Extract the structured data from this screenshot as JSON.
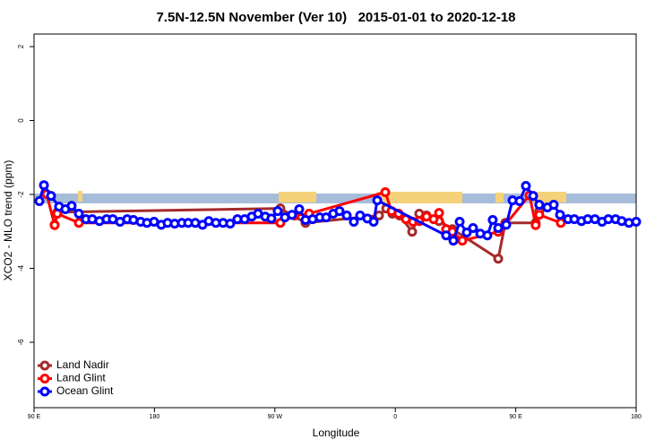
{
  "chart_data": {
    "type": "line",
    "title": "7.5N-12.5N November (Ver 10)   2015-01-01 to 2020-12-18",
    "xlabel": "Longitude",
    "ylabel": "XCO2 - MLO trend (ppm)",
    "xlim": [
      90,
      540
    ],
    "ylim": [
      -7.77,
      2.34
    ],
    "xticks": [
      {
        "value": 90,
        "label": "90 E"
      },
      180,
      {
        "value": 270,
        "label": "90 W"
      },
      {
        "value": 360,
        "label": "0"
      },
      {
        "value": 450,
        "label": "90 E"
      },
      {
        "value": 540,
        "label": "180"
      }
    ],
    "yticks": [
      2,
      0,
      -2,
      -4,
      -6
    ],
    "legend": "bottom-left",
    "series": [
      {
        "name": "Land Nadir",
        "color": "#a52a2a",
        "x": [
          105.4,
          107.4,
          274.1,
          292.9,
          347.8,
          353.2,
          357.8,
          363.2,
          372.6,
          377.9,
          383.3,
          392.7,
          402.7,
          436.9,
          442.2,
          464.9,
          467.6
        ],
        "values": [
          -2.82,
          -2.48,
          -2.38,
          -2.77,
          -2.57,
          -2.38,
          -2.52,
          -2.57,
          -3.01,
          -2.52,
          -2.57,
          -2.72,
          -2.94,
          -3.74,
          -2.77,
          -2.77,
          -2.45
        ]
      },
      {
        "name": "Land Glint",
        "color": "#ff0000",
        "x": [
          99.4,
          105.4,
          107.4,
          123.5,
          274.1,
          284.8,
          295.6,
          352.5,
          357.2,
          362.5,
          367.9,
          373.2,
          377.9,
          383.3,
          388.6,
          392.7,
          398.0,
          402.7,
          410.1,
          436.9,
          442.2,
          460.3,
          464.9,
          467.6,
          483.7
        ],
        "values": [
          -1.99,
          -2.83,
          -2.52,
          -2.77,
          -2.77,
          -2.57,
          -2.52,
          -1.94,
          -2.45,
          -2.52,
          -2.67,
          -2.74,
          -2.72,
          -2.6,
          -2.67,
          -2.5,
          -2.94,
          -3.01,
          -3.25,
          -3.01,
          -2.82,
          -2.02,
          -2.83,
          -2.55,
          -2.77
        ]
      },
      {
        "name": "Ocean Glint",
        "color": "#0000ff",
        "x": [
          94.0,
          97.4,
          102.7,
          108.7,
          113.4,
          118.1,
          123.5,
          128.8,
          133.5,
          138.9,
          144.2,
          148.9,
          154.3,
          159.6,
          164.3,
          169.7,
          174.4,
          179.7,
          185.1,
          189.8,
          195.1,
          200.5,
          205.2,
          210.5,
          215.9,
          220.6,
          225.9,
          231.3,
          236.6,
          242.0,
          247.4,
          252.7,
          257.4,
          262.8,
          267.4,
          272.1,
          277.5,
          282.8,
          288.2,
          292.9,
          298.2,
          303.6,
          308.3,
          313.6,
          318.3,
          323.7,
          329.0,
          333.7,
          339.1,
          343.8,
          346.5,
          398.0,
          403.4,
          408.1,
          413.4,
          418.1,
          423.5,
          428.8,
          432.8,
          436.9,
          442.9,
          447.6,
          452.9,
          457.6,
          463.0,
          467.6,
          473.7,
          478.4,
          483.1,
          489.1,
          493.8,
          499.1,
          503.8,
          509.2,
          514.5,
          519.2,
          524.6,
          529.2,
          534.6,
          540.0
        ],
        "values": [
          -2.18,
          -1.75,
          -2.04,
          -2.33,
          -2.4,
          -2.31,
          -2.52,
          -2.67,
          -2.67,
          -2.72,
          -2.67,
          -2.67,
          -2.74,
          -2.67,
          -2.69,
          -2.74,
          -2.77,
          -2.74,
          -2.82,
          -2.77,
          -2.79,
          -2.77,
          -2.77,
          -2.77,
          -2.82,
          -2.72,
          -2.77,
          -2.77,
          -2.79,
          -2.67,
          -2.67,
          -2.6,
          -2.52,
          -2.6,
          -2.65,
          -2.45,
          -2.62,
          -2.55,
          -2.4,
          -2.69,
          -2.67,
          -2.62,
          -2.62,
          -2.52,
          -2.45,
          -2.57,
          -2.74,
          -2.57,
          -2.65,
          -2.74,
          -2.16,
          -3.11,
          -3.25,
          -2.74,
          -3.03,
          -2.91,
          -3.06,
          -3.11,
          -2.69,
          -2.91,
          -2.82,
          -2.16,
          -2.18,
          -1.77,
          -2.04,
          -2.28,
          -2.35,
          -2.28,
          -2.55,
          -2.67,
          -2.67,
          -2.72,
          -2.67,
          -2.67,
          -2.74,
          -2.67,
          -2.67,
          -2.72,
          -2.77,
          -2.74
        ]
      }
    ]
  }
}
